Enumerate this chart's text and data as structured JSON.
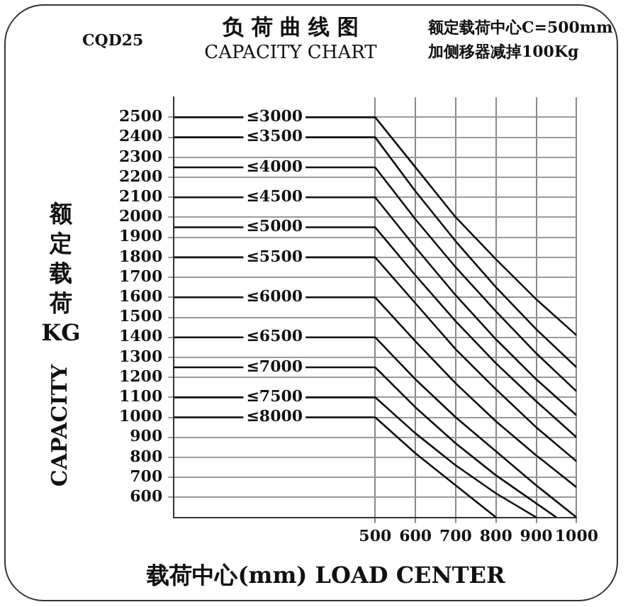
{
  "chart_data": {
    "type": "line",
    "title": "负 荷 曲 线 图",
    "subtitle": "CAPACITY CHART",
    "xlabel": "载荷中心(mm) LOAD CENTER",
    "ylabel": "额定载荷KG",
    "annotations": [
      "CQD25",
      "额定载荷中心C=500mm",
      "加侧移器减掉100Kg",
      "CAPACITY"
    ],
    "xlim": [
      0,
      1000
    ],
    "xticks": [
      500,
      600,
      700,
      800,
      900,
      1000
    ],
    "ylim": [
      500,
      2600
    ],
    "yticks": [
      600,
      700,
      800,
      900,
      1000,
      1100,
      1200,
      1300,
      1400,
      1500,
      1600,
      1700,
      1800,
      1900,
      2000,
      2100,
      2200,
      2300,
      2400,
      2500
    ],
    "grid": true,
    "legend": false,
    "series": [
      {
        "name": "≤3000",
        "color": "#111111",
        "x": [
          0,
          500,
          600,
          700,
          800,
          900,
          1000
        ],
        "values": [
          2500,
          2500,
          2250,
          2000,
          1790,
          1590,
          1410
        ]
      },
      {
        "name": "≤3500",
        "color": "#111111",
        "x": [
          0,
          500,
          600,
          700,
          800,
          900,
          1000
        ],
        "values": [
          2400,
          2400,
          2130,
          1880,
          1650,
          1440,
          1250
        ]
      },
      {
        "name": "≤4000",
        "color": "#111111",
        "x": [
          0,
          500,
          600,
          700,
          800,
          900,
          1000
        ],
        "values": [
          2250,
          2250,
          1990,
          1750,
          1530,
          1320,
          1130
        ]
      },
      {
        "name": "≤4500",
        "color": "#111111",
        "x": [
          0,
          500,
          600,
          700,
          800,
          900,
          1000
        ],
        "values": [
          2100,
          2100,
          1850,
          1610,
          1390,
          1190,
          1010
        ]
      },
      {
        "name": "≤5000",
        "color": "#111111",
        "x": [
          0,
          500,
          600,
          700,
          800,
          900,
          1000
        ],
        "values": [
          1950,
          1950,
          1710,
          1480,
          1270,
          1080,
          900
        ]
      },
      {
        "name": "≤5500",
        "color": "#111111",
        "x": [
          0,
          500,
          600,
          700,
          800,
          900,
          1000
        ],
        "values": [
          1800,
          1800,
          1570,
          1340,
          1140,
          950,
          780
        ]
      },
      {
        "name": "≤6000",
        "color": "#111111",
        "x": [
          0,
          500,
          600,
          700,
          800,
          900,
          1000
        ],
        "values": [
          1600,
          1600,
          1380,
          1170,
          980,
          810,
          650
        ]
      },
      {
        "name": "≤6500",
        "color": "#111111",
        "x": [
          0,
          500,
          600,
          700,
          800,
          900,
          1000
        ],
        "values": [
          1400,
          1400,
          1190,
          1000,
          830,
          660,
          500
        ]
      },
      {
        "name": "≤7000",
        "color": "#111111",
        "x": [
          0,
          500,
          600,
          700,
          800,
          900,
          950
        ],
        "values": [
          1250,
          1250,
          1050,
          870,
          710,
          570,
          500
        ]
      },
      {
        "name": "≤7500",
        "color": "#111111",
        "x": [
          0,
          500,
          600,
          700,
          800,
          900
        ],
        "values": [
          1100,
          1100,
          920,
          760,
          620,
          500
        ]
      },
      {
        "name": "≤8000",
        "color": "#111111",
        "x": [
          0,
          500,
          600,
          700,
          800
        ],
        "values": [
          1000,
          1000,
          820,
          660,
          500
        ]
      }
    ]
  }
}
